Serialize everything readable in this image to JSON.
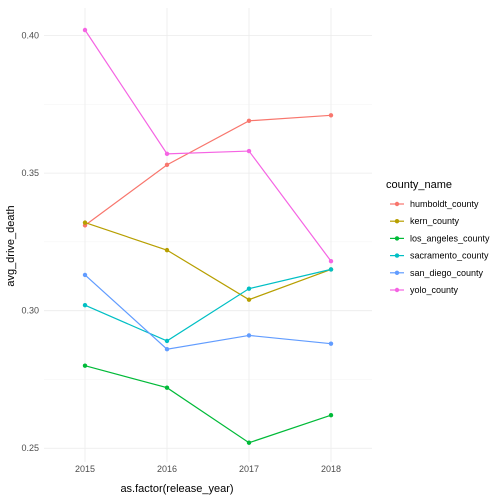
{
  "chart_data": {
    "type": "line",
    "xlabel": "as.factor(release_year)",
    "ylabel": "avg_drive_death",
    "categories": [
      "2015",
      "2016",
      "2017",
      "2018"
    ],
    "ylim": [
      0.245,
      0.41
    ],
    "yticks": [
      0.25,
      0.3,
      0.35,
      0.4
    ],
    "ytick_labels": [
      "0.25",
      "0.30",
      "0.35",
      "0.40"
    ],
    "grid": true,
    "legend": {
      "title": "county_name",
      "position": "right"
    },
    "series": [
      {
        "name": "humboldt_county",
        "color": "#F8766D",
        "values": [
          0.331,
          0.353,
          0.369,
          0.371
        ]
      },
      {
        "name": "kern_county",
        "color": "#B79F00",
        "values": [
          0.332,
          0.322,
          0.304,
          0.315
        ]
      },
      {
        "name": "los_angeles_county",
        "color": "#00BA38",
        "values": [
          0.28,
          0.272,
          0.252,
          0.262
        ]
      },
      {
        "name": "sacramento_county",
        "color": "#00BFC4",
        "values": [
          0.302,
          0.289,
          0.308,
          0.315
        ]
      },
      {
        "name": "san_diego_county",
        "color": "#619CFF",
        "values": [
          0.313,
          0.286,
          0.291,
          0.288
        ]
      },
      {
        "name": "yolo_county",
        "color": "#F564E3",
        "values": [
          0.402,
          0.357,
          0.358,
          0.318
        ]
      }
    ]
  }
}
